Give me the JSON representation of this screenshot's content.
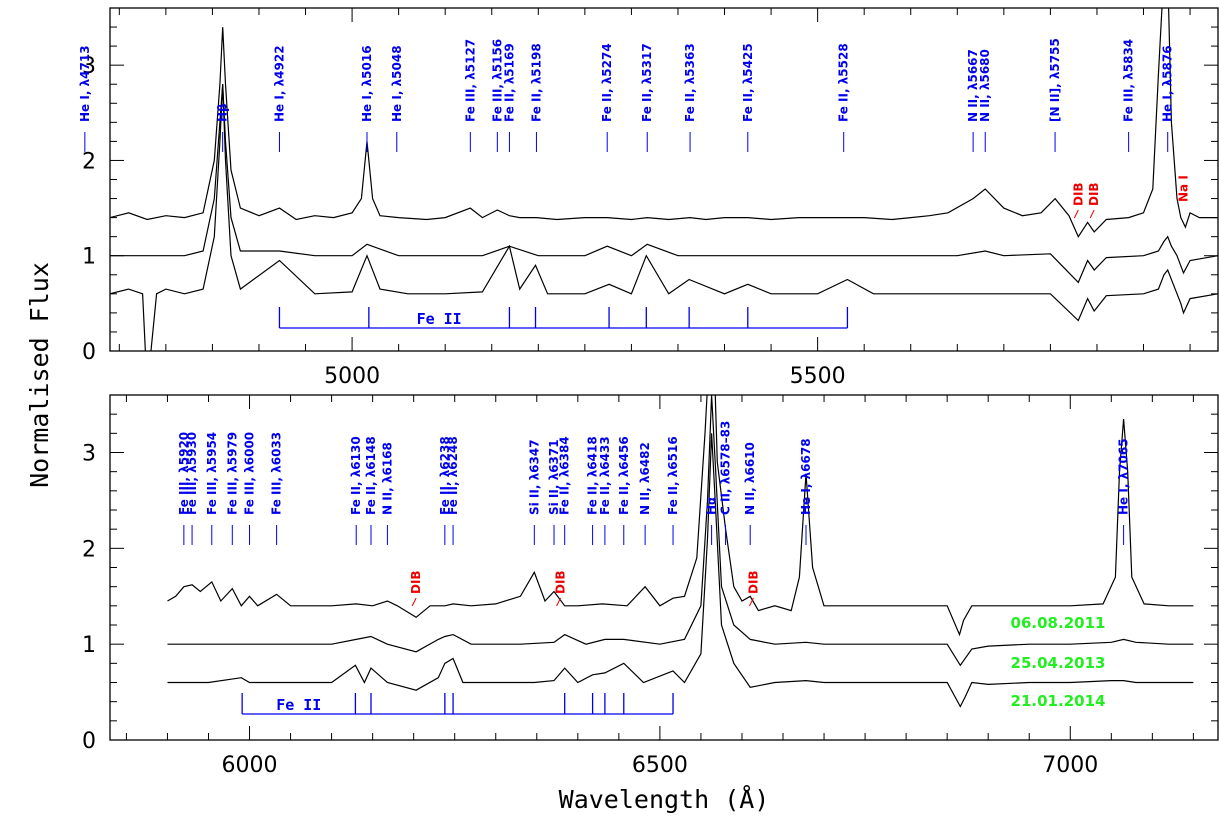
{
  "colors": {
    "axis": "#000000",
    "spectrum": "#000000",
    "line_id": "#0000ee",
    "dib": "#ee0000",
    "date": "#22ee22"
  },
  "chart_data": {
    "type": "line",
    "ylabel": "Normalised Flux",
    "xlabel": "Wavelength (Å)",
    "dates": [
      "06.08.2011",
      "25.04.2013",
      "21.01.2014"
    ],
    "panels": [
      {
        "xlim": [
          4740,
          5930
        ],
        "ylim": [
          0,
          3.6
        ],
        "x_ticks": [
          5000,
          5500
        ],
        "y_ticks": [
          0,
          1,
          2,
          3
        ],
        "fe_ii_label": "Fe II",
        "fe_ii_lines": [
          4922,
          5018,
          5169,
          5197,
          5276,
          5316,
          5362,
          5425,
          5532
        ],
        "lines": [
          {
            "label": "He I, λ4713",
            "wl": 4713
          },
          {
            "label": "Hβ",
            "wl": 4861
          },
          {
            "label": "He I, λ4922",
            "wl": 4922
          },
          {
            "label": "He I, λ5016",
            "wl": 5016
          },
          {
            "label": "He I, λ5048",
            "wl": 5048
          },
          {
            "label": "Fe III, λ5127",
            "wl": 5127
          },
          {
            "label": "Fe III, λ5156",
            "wl": 5156
          },
          {
            "label": "Fe II, λ5169",
            "wl": 5169
          },
          {
            "label": "Fe II, λ5198",
            "wl": 5198
          },
          {
            "label": "Fe II, λ5274",
            "wl": 5274
          },
          {
            "label": "Fe II, λ5317",
            "wl": 5317
          },
          {
            "label": "Fe II, λ5363",
            "wl": 5363
          },
          {
            "label": "Fe II, λ5425",
            "wl": 5425
          },
          {
            "label": "Fe II, λ5528",
            "wl": 5528
          },
          {
            "label": "N II, λ5667",
            "wl": 5667
          },
          {
            "label": "N II, λ5680",
            "wl": 5680
          },
          {
            "label": "[N II], λ5755",
            "wl": 5755
          },
          {
            "label": "Fe III, λ5834",
            "wl": 5834
          },
          {
            "label": "He I, λ5876",
            "wl": 5876
          }
        ],
        "dibs": [
          {
            "label": "DIB",
            "wl": 5780
          },
          {
            "label": "DIB",
            "wl": 5797
          }
        ],
        "na_label": {
          "label": "Na I",
          "wl": 5893
        },
        "series": [
          {
            "name": "06.08.2011",
            "offset": 0.4,
            "x": [
              4740,
              4760,
              4780,
              4800,
              4820,
              4840,
              4852,
              4858,
              4861,
              4864,
              4870,
              4880,
              4900,
              4922,
              4940,
              4960,
              4980,
              5000,
              5010,
              5016,
              5022,
              5030,
              5050,
              5080,
              5100,
              5127,
              5140,
              5156,
              5169,
              5180,
              5198,
              5220,
              5250,
              5274,
              5300,
              5317,
              5340,
              5363,
              5380,
              5400,
              5425,
              5450,
              5480,
              5500,
              5528,
              5550,
              5580,
              5600,
              5620,
              5640,
              5667,
              5680,
              5700,
              5720,
              5740,
              5755,
              5770,
              5780,
              5790,
              5797,
              5810,
              5834,
              5850,
              5860,
              5866,
              5872,
              5876,
              5880,
              5886,
              5890,
              5895,
              5900,
              5910,
              5920,
              5930
            ],
            "y": [
              1.0,
              1.05,
              0.98,
              1.02,
              1.0,
              1.05,
              1.6,
              2.4,
              3.0,
              2.4,
              1.5,
              1.1,
              1.02,
              1.1,
              0.98,
              1.02,
              1.0,
              1.05,
              1.2,
              1.8,
              1.2,
              1.02,
              1.0,
              0.98,
              1.0,
              1.1,
              1.0,
              1.08,
              1.02,
              1.0,
              1.0,
              0.98,
              1.0,
              1.0,
              0.98,
              1.0,
              0.98,
              1.0,
              0.98,
              1.0,
              1.0,
              0.98,
              1.0,
              1.0,
              1.0,
              1.0,
              0.98,
              1.0,
              1.02,
              1.05,
              1.2,
              1.3,
              1.1,
              1.02,
              1.05,
              1.2,
              1.02,
              0.8,
              0.95,
              0.85,
              0.98,
              1.0,
              1.05,
              1.3,
              2.5,
              3.6,
              3.6,
              2.0,
              1.2,
              1.0,
              0.9,
              1.05,
              1.0,
              1.0,
              1.0
            ]
          },
          {
            "name": "25.04.2013",
            "offset": 0.0,
            "x": [
              4740,
              4780,
              4820,
              4840,
              4852,
              4858,
              4861,
              4864,
              4870,
              4880,
              4922,
              4960,
              5000,
              5016,
              5050,
              5100,
              5140,
              5169,
              5200,
              5250,
              5274,
              5300,
              5317,
              5350,
              5400,
              5450,
              5500,
              5550,
              5600,
              5650,
              5680,
              5700,
              5750,
              5780,
              5790,
              5797,
              5810,
              5850,
              5866,
              5872,
              5876,
              5880,
              5886,
              5893,
              5900,
              5930
            ],
            "y": [
              1.0,
              1.0,
              1.0,
              1.05,
              1.6,
              2.4,
              2.8,
              2.2,
              1.4,
              1.05,
              1.05,
              1.0,
              1.0,
              1.12,
              1.0,
              1.0,
              1.0,
              1.1,
              1.0,
              1.0,
              1.1,
              1.0,
              1.12,
              1.0,
              1.0,
              1.0,
              1.0,
              1.0,
              1.0,
              1.0,
              1.05,
              1.0,
              1.02,
              0.72,
              0.95,
              0.85,
              0.98,
              1.0,
              1.05,
              1.15,
              1.2,
              1.1,
              1.0,
              0.82,
              0.95,
              1.0
            ]
          },
          {
            "name": "21.01.2014",
            "offset": -0.4,
            "x": [
              4740,
              4760,
              4775,
              4780,
              4790,
              4800,
              4820,
              4840,
              4852,
              4858,
              4861,
              4864,
              4870,
              4880,
              4922,
              4960,
              5000,
              5016,
              5030,
              5060,
              5100,
              5140,
              5169,
              5180,
              5197,
              5210,
              5250,
              5276,
              5300,
              5316,
              5340,
              5362,
              5400,
              5425,
              5450,
              5500,
              5532,
              5560,
              5600,
              5650,
              5700,
              5750,
              5780,
              5790,
              5797,
              5810,
              5850,
              5866,
              5872,
              5876,
              5882,
              5890,
              5893,
              5900,
              5930
            ],
            "y": [
              1.0,
              1.05,
              1.0,
              0.0,
              1.0,
              1.05,
              1.0,
              1.05,
              1.6,
              2.6,
              3.2,
              2.4,
              1.4,
              1.05,
              1.35,
              1.0,
              1.02,
              1.4,
              1.05,
              1.0,
              1.0,
              1.02,
              1.5,
              1.05,
              1.3,
              1.0,
              1.0,
              1.1,
              1.0,
              1.4,
              1.0,
              1.15,
              1.0,
              1.1,
              1.0,
              1.0,
              1.15,
              1.0,
              1.0,
              1.0,
              1.0,
              1.0,
              0.72,
              0.95,
              0.82,
              0.98,
              1.0,
              1.05,
              1.2,
              1.25,
              1.1,
              0.9,
              0.8,
              0.95,
              1.0
            ]
          }
        ]
      },
      {
        "xlim": [
          5830,
          7180
        ],
        "ylim": [
          0,
          3.6
        ],
        "x_ticks": [
          6000,
          6500,
          7000
        ],
        "y_ticks": [
          0,
          1,
          2,
          3
        ],
        "fe_ii_label": "Fe II",
        "fe_ii_lines": [
          5991,
          6129,
          6148,
          6238,
          6248,
          6384,
          6418,
          6433,
          6456,
          6516
        ],
        "lines": [
          {
            "label": "Fe III, λ5920",
            "wl": 5920
          },
          {
            "label": "Fe III, λ5930",
            "wl": 5930
          },
          {
            "label": "Fe III, λ5954",
            "wl": 5954
          },
          {
            "label": "Fe III, λ5979",
            "wl": 5979
          },
          {
            "label": "Fe III, λ6000",
            "wl": 6000
          },
          {
            "label": "Fe III, λ6033",
            "wl": 6033
          },
          {
            "label": "Fe II, λ6130",
            "wl": 6130
          },
          {
            "label": "Fe II, λ6148",
            "wl": 6148
          },
          {
            "label": "N II, λ6168",
            "wl": 6168
          },
          {
            "label": "Fe II, λ6238",
            "wl": 6238
          },
          {
            "label": "Fe II, λ6248",
            "wl": 6248
          },
          {
            "label": "Si II, λ6347",
            "wl": 6347
          },
          {
            "label": "Si II, λ6371",
            "wl": 6371
          },
          {
            "label": "Fe II, λ6384",
            "wl": 6384
          },
          {
            "label": "Fe II, λ6418",
            "wl": 6418
          },
          {
            "label": "Fe II, λ6433",
            "wl": 6433
          },
          {
            "label": "Fe II, λ6456",
            "wl": 6456
          },
          {
            "label": "N II, λ6482",
            "wl": 6482
          },
          {
            "label": "Fe II, λ6516",
            "wl": 6516
          },
          {
            "label": "Hα",
            "wl": 6563
          },
          {
            "label": "C II, λ6578–83",
            "wl": 6580
          },
          {
            "label": "N II, λ6610",
            "wl": 6610
          },
          {
            "label": "He I, λ6678",
            "wl": 6678
          },
          {
            "label": "He I, λ7065",
            "wl": 7065
          }
        ],
        "dibs": [
          {
            "label": "DIB",
            "wl": 6203
          },
          {
            "label": "DIB",
            "wl": 6379
          },
          {
            "label": "DIB",
            "wl": 6614
          }
        ],
        "series": [
          {
            "name": "06.08.2011",
            "offset": 0.4,
            "x": [
              5900,
              5910,
              5920,
              5930,
              5940,
              5954,
              5965,
              5979,
              5990,
              6000,
              6010,
              6033,
              6050,
              6100,
              6130,
              6150,
              6168,
              6180,
              6203,
              6220,
              6238,
              6248,
              6270,
              6300,
              6330,
              6347,
              6360,
              6371,
              6384,
              6400,
              6430,
              6460,
              6482,
              6500,
              6516,
              6530,
              6545,
              6555,
              6560,
              6563,
              6566,
              6570,
              6580,
              6590,
              6600,
              6610,
              6620,
              6640,
              6660,
              6670,
              6678,
              6686,
              6700,
              6750,
              6800,
              6850,
              6865,
              6870,
              6880,
              6900,
              6950,
              7000,
              7040,
              7055,
              7060,
              7065,
              7070,
              7075,
              7090,
              7120,
              7150
            ],
            "y": [
              1.05,
              1.1,
              1.2,
              1.22,
              1.15,
              1.25,
              1.05,
              1.18,
              1.0,
              1.1,
              1.0,
              1.12,
              1.0,
              1.0,
              1.02,
              1.0,
              1.05,
              1.0,
              0.88,
              1.0,
              1.0,
              1.02,
              1.0,
              1.02,
              1.1,
              1.35,
              1.05,
              1.15,
              1.0,
              1.0,
              1.02,
              1.0,
              1.2,
              1.0,
              1.08,
              1.1,
              1.5,
              2.8,
              3.6,
              3.6,
              3.6,
              2.5,
              1.8,
              1.2,
              1.05,
              1.1,
              0.95,
              1.0,
              0.95,
              1.3,
              2.38,
              1.4,
              1.0,
              1.0,
              1.0,
              1.0,
              0.7,
              0.85,
              1.0,
              1.0,
              1.0,
              1.0,
              1.02,
              1.3,
              2.4,
              2.95,
              2.4,
              1.3,
              1.02,
              1.0,
              1.0
            ]
          },
          {
            "name": "25.04.2013",
            "offset": 0.0,
            "x": [
              5900,
              5950,
              6000,
              6050,
              6100,
              6130,
              6148,
              6168,
              6203,
              6230,
              6238,
              6248,
              6270,
              6330,
              6371,
              6384,
              6410,
              6433,
              6456,
              6500,
              6530,
              6550,
              6558,
              6563,
              6568,
              6575,
              6590,
              6610,
              6640,
              6678,
              6700,
              6750,
              6850,
              6866,
              6880,
              6900,
              6950,
              7000,
              7050,
              7065,
              7080,
              7120,
              7150
            ],
            "y": [
              1.0,
              1.0,
              1.0,
              1.0,
              1.0,
              1.05,
              1.08,
              1.0,
              0.92,
              1.05,
              1.08,
              1.1,
              1.0,
              1.0,
              1.02,
              1.1,
              1.0,
              1.05,
              1.05,
              1.0,
              1.05,
              1.4,
              2.5,
              3.6,
              2.8,
              1.6,
              1.2,
              1.05,
              1.0,
              1.02,
              1.0,
              1.0,
              1.0,
              0.78,
              0.95,
              0.98,
              1.0,
              1.0,
              1.02,
              1.05,
              1.02,
              1.0,
              1.0
            ]
          },
          {
            "name": "21.01.2014",
            "offset": -0.4,
            "x": [
              5900,
              5950,
              5990,
              6000,
              6050,
              6100,
              6129,
              6140,
              6148,
              6168,
              6203,
              6230,
              6238,
              6248,
              6260,
              6300,
              6347,
              6371,
              6384,
              6400,
              6418,
              6433,
              6456,
              6480,
              6516,
              6530,
              6550,
              6558,
              6563,
              6568,
              6575,
              6590,
              6610,
              6640,
              6678,
              6700,
              6750,
              6850,
              6866,
              6872,
              6880,
              6900,
              6950,
              7000,
              7050,
              7065,
              7080,
              7120,
              7150
            ],
            "y": [
              1.0,
              1.0,
              1.05,
              1.0,
              1.0,
              1.0,
              1.18,
              1.0,
              1.15,
              1.0,
              0.92,
              1.05,
              1.2,
              1.25,
              1.0,
              1.0,
              1.0,
              1.02,
              1.15,
              1.0,
              1.08,
              1.1,
              1.2,
              1.0,
              1.12,
              1.0,
              1.3,
              2.5,
              3.6,
              2.8,
              1.6,
              1.2,
              0.95,
              1.0,
              1.02,
              1.0,
              1.0,
              1.0,
              0.75,
              0.85,
              1.0,
              0.98,
              1.0,
              1.0,
              1.02,
              1.02,
              1.0,
              1.0,
              1.0
            ]
          }
        ]
      }
    ]
  }
}
